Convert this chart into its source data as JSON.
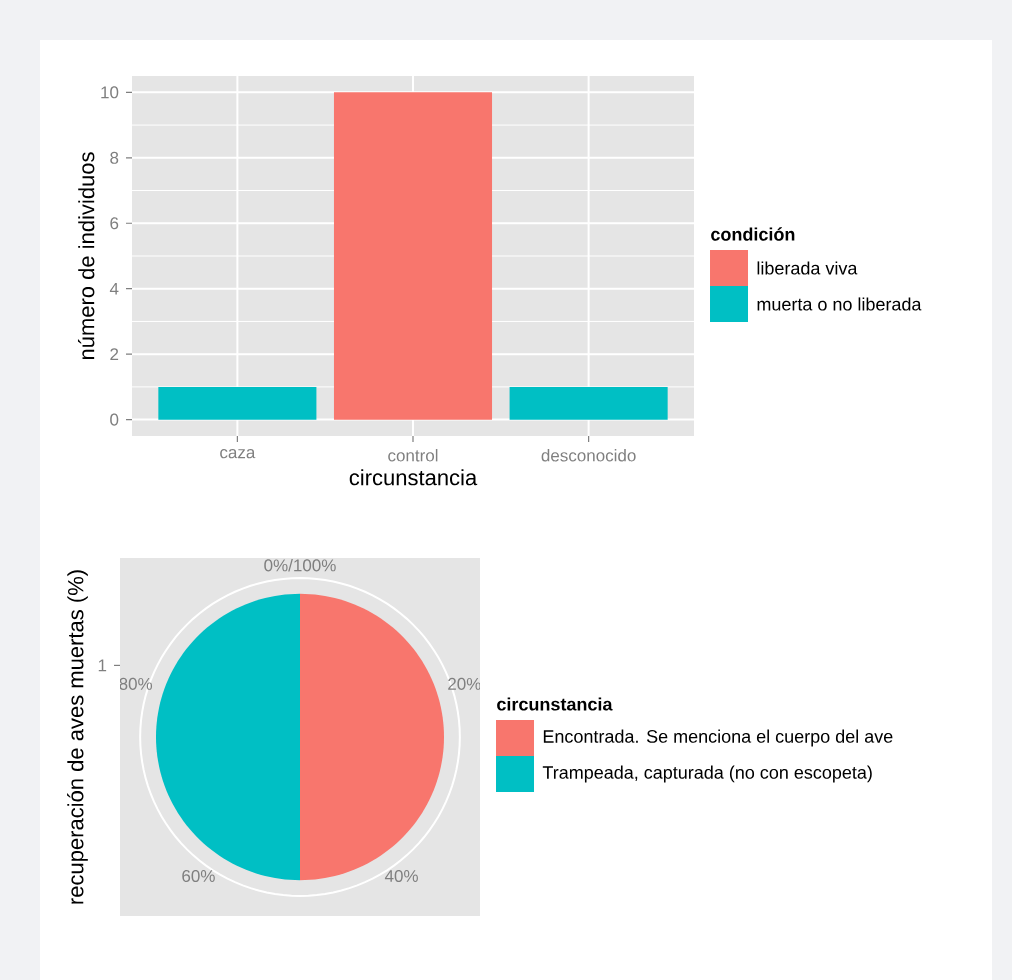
{
  "chart_data": [
    {
      "type": "bar",
      "categories": [
        "caza",
        "control",
        "desconocido"
      ],
      "xlabel": "circunstancia",
      "ylabel": "número de individuos",
      "legend_title": "condición",
      "series": [
        {
          "name": "liberada viva",
          "color": "#f8766d",
          "values": [
            null,
            10,
            null
          ]
        },
        {
          "name": "muerta o no liberada",
          "color": "#00bfc4",
          "values": [
            1,
            null,
            1
          ]
        }
      ],
      "ylim": [
        -0.5,
        10.5
      ],
      "yticks": [
        0,
        2,
        4,
        6,
        8,
        10
      ],
      "grid": true,
      "legend": "right"
    },
    {
      "type": "pie",
      "ylabel": "recuperación de aves muertas (%)",
      "legend_title": "circunstancia",
      "categories": [
        "Encontrada. Se menciona el cuerpo del ave",
        "Trampeada, capturada (no con escopeta)"
      ],
      "values": [
        50,
        50
      ],
      "colors": [
        "#f8766d",
        "#00bfc4"
      ],
      "annotations": [
        "0%/100%",
        "20%",
        "40%",
        "60%",
        "80%",
        "1"
      ],
      "legend": "right"
    }
  ]
}
